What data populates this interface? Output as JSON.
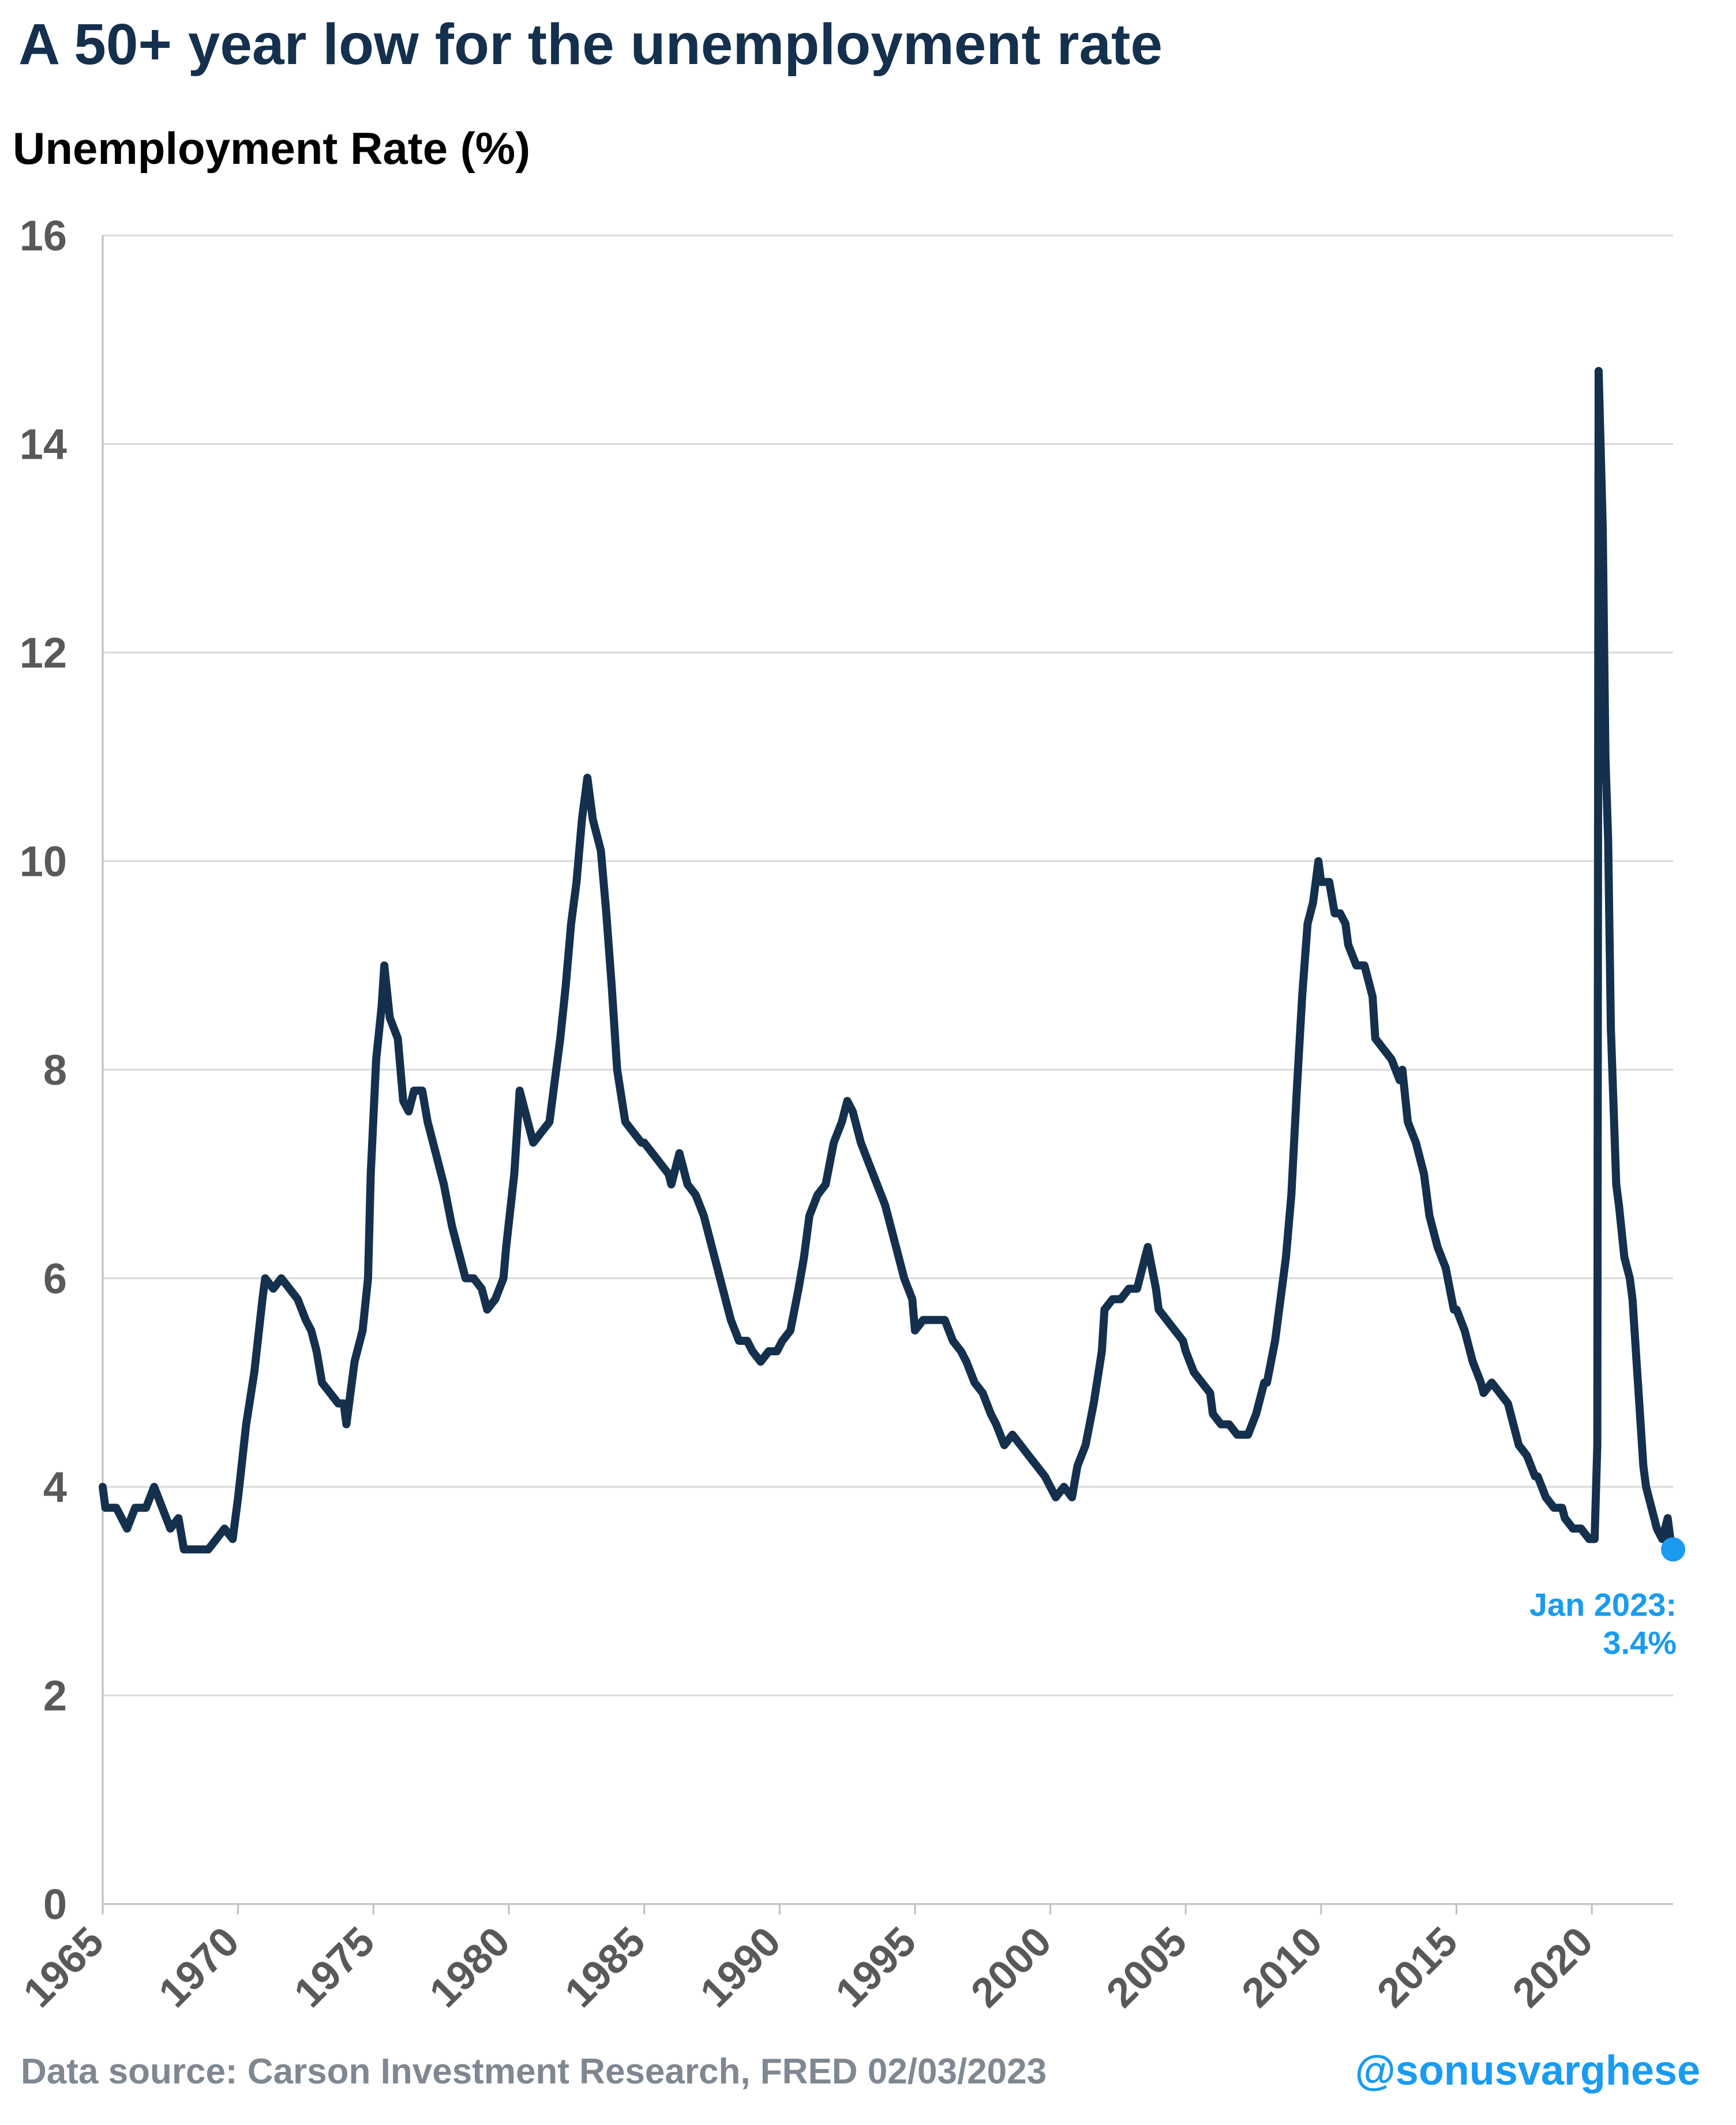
{
  "header": {
    "title": "A 50+ year low for the unemployment rate",
    "ylabel": "Unemployment Rate (%)"
  },
  "footer": {
    "source": "Data source: Carson Investment Research, FRED   02/03/2023",
    "handle": "@sonusvarghese"
  },
  "colors": {
    "line": "#14304d",
    "highlight": "#1a9bf0",
    "grid": "#d9d9d9",
    "axis_text": "#595959"
  },
  "chart_data": {
    "type": "line",
    "title": "A 50+ year low for the unemployment rate",
    "ylabel": "Unemployment Rate (%)",
    "xlabel": "",
    "xlim": [
      1965,
      2023
    ],
    "ylim": [
      0,
      16
    ],
    "grid": "horizontal",
    "x_ticks": [
      "1965",
      "1970",
      "1975",
      "1980",
      "1985",
      "1990",
      "1995",
      "2000",
      "2005",
      "2010",
      "2015",
      "2020"
    ],
    "y_ticks": [
      "0",
      "2",
      "4",
      "6",
      "8",
      "10",
      "12",
      "14",
      "16"
    ],
    "series": [
      {
        "points": [
          [
            1965.0,
            4.0
          ],
          [
            1965.1,
            3.8
          ],
          [
            1965.5,
            3.8
          ],
          [
            1965.9,
            3.6
          ],
          [
            1966.2,
            3.8
          ],
          [
            1966.6,
            3.8
          ],
          [
            1966.9,
            4.0
          ],
          [
            1967.2,
            3.8
          ],
          [
            1967.5,
            3.6
          ],
          [
            1967.8,
            3.7
          ],
          [
            1968.0,
            3.4
          ],
          [
            1968.5,
            3.4
          ],
          [
            1968.9,
            3.4
          ],
          [
            1969.2,
            3.5
          ],
          [
            1969.5,
            3.6
          ],
          [
            1969.8,
            3.5
          ],
          [
            1970.0,
            3.9
          ],
          [
            1970.3,
            4.6
          ],
          [
            1970.6,
            5.1
          ],
          [
            1970.9,
            5.8
          ],
          [
            1971.0,
            6.0
          ],
          [
            1971.3,
            5.9
          ],
          [
            1971.6,
            6.0
          ],
          [
            1971.9,
            5.9
          ],
          [
            1972.2,
            5.8
          ],
          [
            1972.5,
            5.6
          ],
          [
            1972.7,
            5.5
          ],
          [
            1972.9,
            5.3
          ],
          [
            1973.1,
            5.0
          ],
          [
            1973.4,
            4.9
          ],
          [
            1973.7,
            4.8
          ],
          [
            1973.9,
            4.8
          ],
          [
            1974.0,
            4.6
          ],
          [
            1974.3,
            5.2
          ],
          [
            1974.6,
            5.5
          ],
          [
            1974.8,
            6.0
          ],
          [
            1974.9,
            7.0
          ],
          [
            1975.1,
            8.1
          ],
          [
            1975.3,
            8.6
          ],
          [
            1975.4,
            9.0
          ],
          [
            1975.6,
            8.5
          ],
          [
            1975.9,
            8.3
          ],
          [
            1976.1,
            7.7
          ],
          [
            1976.3,
            7.6
          ],
          [
            1976.5,
            7.8
          ],
          [
            1976.8,
            7.8
          ],
          [
            1977.0,
            7.5
          ],
          [
            1977.3,
            7.2
          ],
          [
            1977.6,
            6.9
          ],
          [
            1977.9,
            6.5
          ],
          [
            1978.1,
            6.3
          ],
          [
            1978.4,
            6.0
          ],
          [
            1978.7,
            6.0
          ],
          [
            1979.0,
            5.9
          ],
          [
            1979.2,
            5.7
          ],
          [
            1979.5,
            5.8
          ],
          [
            1979.8,
            6.0
          ],
          [
            1979.9,
            6.3
          ],
          [
            1980.2,
            7.0
          ],
          [
            1980.4,
            7.8
          ],
          [
            1980.6,
            7.6
          ],
          [
            1980.9,
            7.3
          ],
          [
            1981.2,
            7.4
          ],
          [
            1981.5,
            7.5
          ],
          [
            1981.7,
            7.9
          ],
          [
            1981.9,
            8.3
          ],
          [
            1982.1,
            8.8
          ],
          [
            1982.3,
            9.4
          ],
          [
            1982.5,
            9.8
          ],
          [
            1982.7,
            10.4
          ],
          [
            1982.9,
            10.8
          ],
          [
            1983.1,
            10.4
          ],
          [
            1983.4,
            10.1
          ],
          [
            1983.6,
            9.5
          ],
          [
            1983.8,
            8.8
          ],
          [
            1984.0,
            8.0
          ],
          [
            1984.3,
            7.5
          ],
          [
            1984.6,
            7.4
          ],
          [
            1984.9,
            7.3
          ],
          [
            1985.0,
            7.3
          ],
          [
            1985.3,
            7.2
          ],
          [
            1985.6,
            7.1
          ],
          [
            1985.9,
            7.0
          ],
          [
            1986.0,
            6.9
          ],
          [
            1986.3,
            7.2
          ],
          [
            1986.6,
            6.9
          ],
          [
            1986.9,
            6.8
          ],
          [
            1987.2,
            6.6
          ],
          [
            1987.5,
            6.3
          ],
          [
            1987.8,
            6.0
          ],
          [
            1988.0,
            5.8
          ],
          [
            1988.2,
            5.6
          ],
          [
            1988.5,
            5.4
          ],
          [
            1988.8,
            5.4
          ],
          [
            1989.0,
            5.3
          ],
          [
            1989.3,
            5.2
          ],
          [
            1989.6,
            5.3
          ],
          [
            1989.9,
            5.3
          ],
          [
            1990.1,
            5.4
          ],
          [
            1990.4,
            5.5
          ],
          [
            1990.7,
            5.9
          ],
          [
            1990.9,
            6.2
          ],
          [
            1991.1,
            6.6
          ],
          [
            1991.4,
            6.8
          ],
          [
            1991.7,
            6.9
          ],
          [
            1992.0,
            7.3
          ],
          [
            1992.3,
            7.5
          ],
          [
            1992.5,
            7.7
          ],
          [
            1992.7,
            7.6
          ],
          [
            1993.0,
            7.3
          ],
          [
            1993.3,
            7.1
          ],
          [
            1993.6,
            6.9
          ],
          [
            1993.9,
            6.7
          ],
          [
            1994.0,
            6.6
          ],
          [
            1994.3,
            6.3
          ],
          [
            1994.6,
            6.0
          ],
          [
            1994.9,
            5.8
          ],
          [
            1995.0,
            5.5
          ],
          [
            1995.3,
            5.6
          ],
          [
            1995.6,
            5.6
          ],
          [
            1995.9,
            5.6
          ],
          [
            1996.1,
            5.6
          ],
          [
            1996.4,
            5.4
          ],
          [
            1996.7,
            5.3
          ],
          [
            1996.9,
            5.2
          ],
          [
            1997.2,
            5.0
          ],
          [
            1997.5,
            4.9
          ],
          [
            1997.8,
            4.7
          ],
          [
            1998.0,
            4.6
          ],
          [
            1998.3,
            4.4
          ],
          [
            1998.6,
            4.5
          ],
          [
            1998.9,
            4.4
          ],
          [
            1999.2,
            4.3
          ],
          [
            1999.5,
            4.2
          ],
          [
            1999.8,
            4.1
          ],
          [
            2000.0,
            4.0
          ],
          [
            2000.2,
            3.9
          ],
          [
            2000.5,
            4.0
          ],
          [
            2000.8,
            3.9
          ],
          [
            2001.0,
            4.2
          ],
          [
            2001.3,
            4.4
          ],
          [
            2001.6,
            4.8
          ],
          [
            2001.9,
            5.3
          ],
          [
            2002.0,
            5.7
          ],
          [
            2002.3,
            5.8
          ],
          [
            2002.6,
            5.8
          ],
          [
            2002.9,
            5.9
          ],
          [
            2003.2,
            5.9
          ],
          [
            2003.5,
            6.2
          ],
          [
            2003.6,
            6.3
          ],
          [
            2003.9,
            5.9
          ],
          [
            2004.0,
            5.7
          ],
          [
            2004.3,
            5.6
          ],
          [
            2004.6,
            5.5
          ],
          [
            2004.9,
            5.4
          ],
          [
            2005.0,
            5.3
          ],
          [
            2005.3,
            5.1
          ],
          [
            2005.6,
            5.0
          ],
          [
            2005.9,
            4.9
          ],
          [
            2006.0,
            4.7
          ],
          [
            2006.3,
            4.6
          ],
          [
            2006.6,
            4.6
          ],
          [
            2006.9,
            4.5
          ],
          [
            2007.0,
            4.5
          ],
          [
            2007.3,
            4.5
          ],
          [
            2007.6,
            4.7
          ],
          [
            2007.9,
            5.0
          ],
          [
            2008.0,
            5.0
          ],
          [
            2008.3,
            5.4
          ],
          [
            2008.5,
            5.8
          ],
          [
            2008.7,
            6.2
          ],
          [
            2008.9,
            6.8
          ],
          [
            2009.1,
            7.8
          ],
          [
            2009.3,
            8.7
          ],
          [
            2009.5,
            9.4
          ],
          [
            2009.7,
            9.6
          ],
          [
            2009.9,
            10.0
          ],
          [
            2010.0,
            9.8
          ],
          [
            2010.3,
            9.8
          ],
          [
            2010.5,
            9.5
          ],
          [
            2010.7,
            9.5
          ],
          [
            2010.9,
            9.4
          ],
          [
            2011.0,
            9.2
          ],
          [
            2011.3,
            9.0
          ],
          [
            2011.6,
            9.0
          ],
          [
            2011.9,
            8.7
          ],
          [
            2012.0,
            8.3
          ],
          [
            2012.3,
            8.2
          ],
          [
            2012.6,
            8.1
          ],
          [
            2012.9,
            7.9
          ],
          [
            2013.0,
            8.0
          ],
          [
            2013.2,
            7.5
          ],
          [
            2013.5,
            7.3
          ],
          [
            2013.8,
            7.0
          ],
          [
            2014.0,
            6.6
          ],
          [
            2014.3,
            6.3
          ],
          [
            2014.6,
            6.1
          ],
          [
            2014.9,
            5.7
          ],
          [
            2015.0,
            5.7
          ],
          [
            2015.3,
            5.5
          ],
          [
            2015.6,
            5.2
          ],
          [
            2015.9,
            5.0
          ],
          [
            2016.0,
            4.9
          ],
          [
            2016.3,
            5.0
          ],
          [
            2016.6,
            4.9
          ],
          [
            2016.9,
            4.8
          ],
          [
            2017.0,
            4.7
          ],
          [
            2017.3,
            4.4
          ],
          [
            2017.6,
            4.3
          ],
          [
            2017.9,
            4.1
          ],
          [
            2018.0,
            4.1
          ],
          [
            2018.3,
            3.9
          ],
          [
            2018.6,
            3.8
          ],
          [
            2018.9,
            3.8
          ],
          [
            2019.0,
            3.7
          ],
          [
            2019.3,
            3.6
          ],
          [
            2019.6,
            3.6
          ],
          [
            2019.9,
            3.5
          ],
          [
            2020.0,
            3.5
          ],
          [
            2020.1,
            3.5
          ],
          [
            2020.2,
            4.4
          ],
          [
            2020.25,
            14.7
          ],
          [
            2020.4,
            13.2
          ],
          [
            2020.5,
            11.0
          ],
          [
            2020.6,
            10.2
          ],
          [
            2020.7,
            8.4
          ],
          [
            2020.9,
            6.9
          ],
          [
            2021.0,
            6.7
          ],
          [
            2021.2,
            6.2
          ],
          [
            2021.4,
            6.0
          ],
          [
            2021.5,
            5.8
          ],
          [
            2021.6,
            5.4
          ],
          [
            2021.8,
            4.6
          ],
          [
            2021.9,
            4.2
          ],
          [
            2022.0,
            4.0
          ],
          [
            2022.2,
            3.8
          ],
          [
            2022.4,
            3.6
          ],
          [
            2022.6,
            3.5
          ],
          [
            2022.8,
            3.7
          ],
          [
            2022.9,
            3.5
          ],
          [
            2023.0,
            3.4
          ]
        ]
      }
    ],
    "annotations": [
      {
        "x": 2023.0,
        "y": 3.4,
        "label_lines": [
          "Jan 2023:",
          "3.4%"
        ]
      }
    ]
  }
}
